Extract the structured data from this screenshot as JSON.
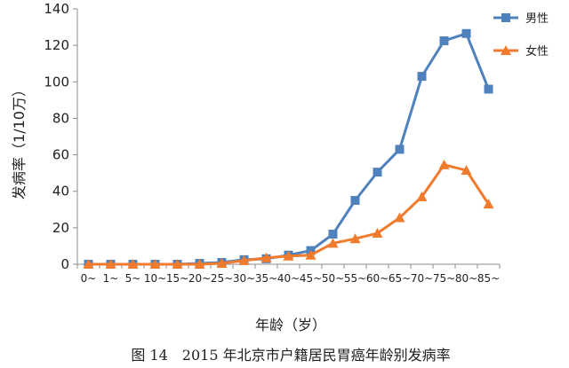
{
  "figure_caption": "图 14　2015 年北京市户籍居民胃癌年龄别发病率",
  "chart_data": {
    "type": "line",
    "categories": [
      "0~",
      "1~",
      "5~",
      "10~",
      "15~",
      "20~",
      "25~",
      "30~",
      "35~",
      "40~",
      "45~",
      "50~",
      "55~",
      "60~",
      "65~",
      "70~",
      "75~",
      "80~",
      "85~"
    ],
    "series": [
      {
        "name": "男性",
        "color": "#4f81bd",
        "marker": "square",
        "values": [
          0,
          0,
          0,
          0,
          0,
          0.5,
          1,
          2.5,
          3,
          5,
          7.5,
          16.5,
          35,
          50.5,
          63,
          103,
          122.5,
          126.5,
          96
        ]
      },
      {
        "name": "女性",
        "color": "#f07b2d",
        "marker": "triangle",
        "values": [
          0,
          0,
          0,
          0,
          0,
          0,
          0.5,
          2,
          3.5,
          4.5,
          5,
          11.5,
          14,
          17,
          25.5,
          37,
          54.5,
          51.5,
          33
        ]
      }
    ],
    "xlabel": "年龄（岁）",
    "ylabel": "发病率（1/10万）",
    "ylim": [
      0,
      140
    ],
    "yticks": [
      "0",
      "20",
      "40",
      "60",
      "80",
      "100",
      "120",
      "140"
    ],
    "grid": false,
    "legend_position": "top-right"
  }
}
